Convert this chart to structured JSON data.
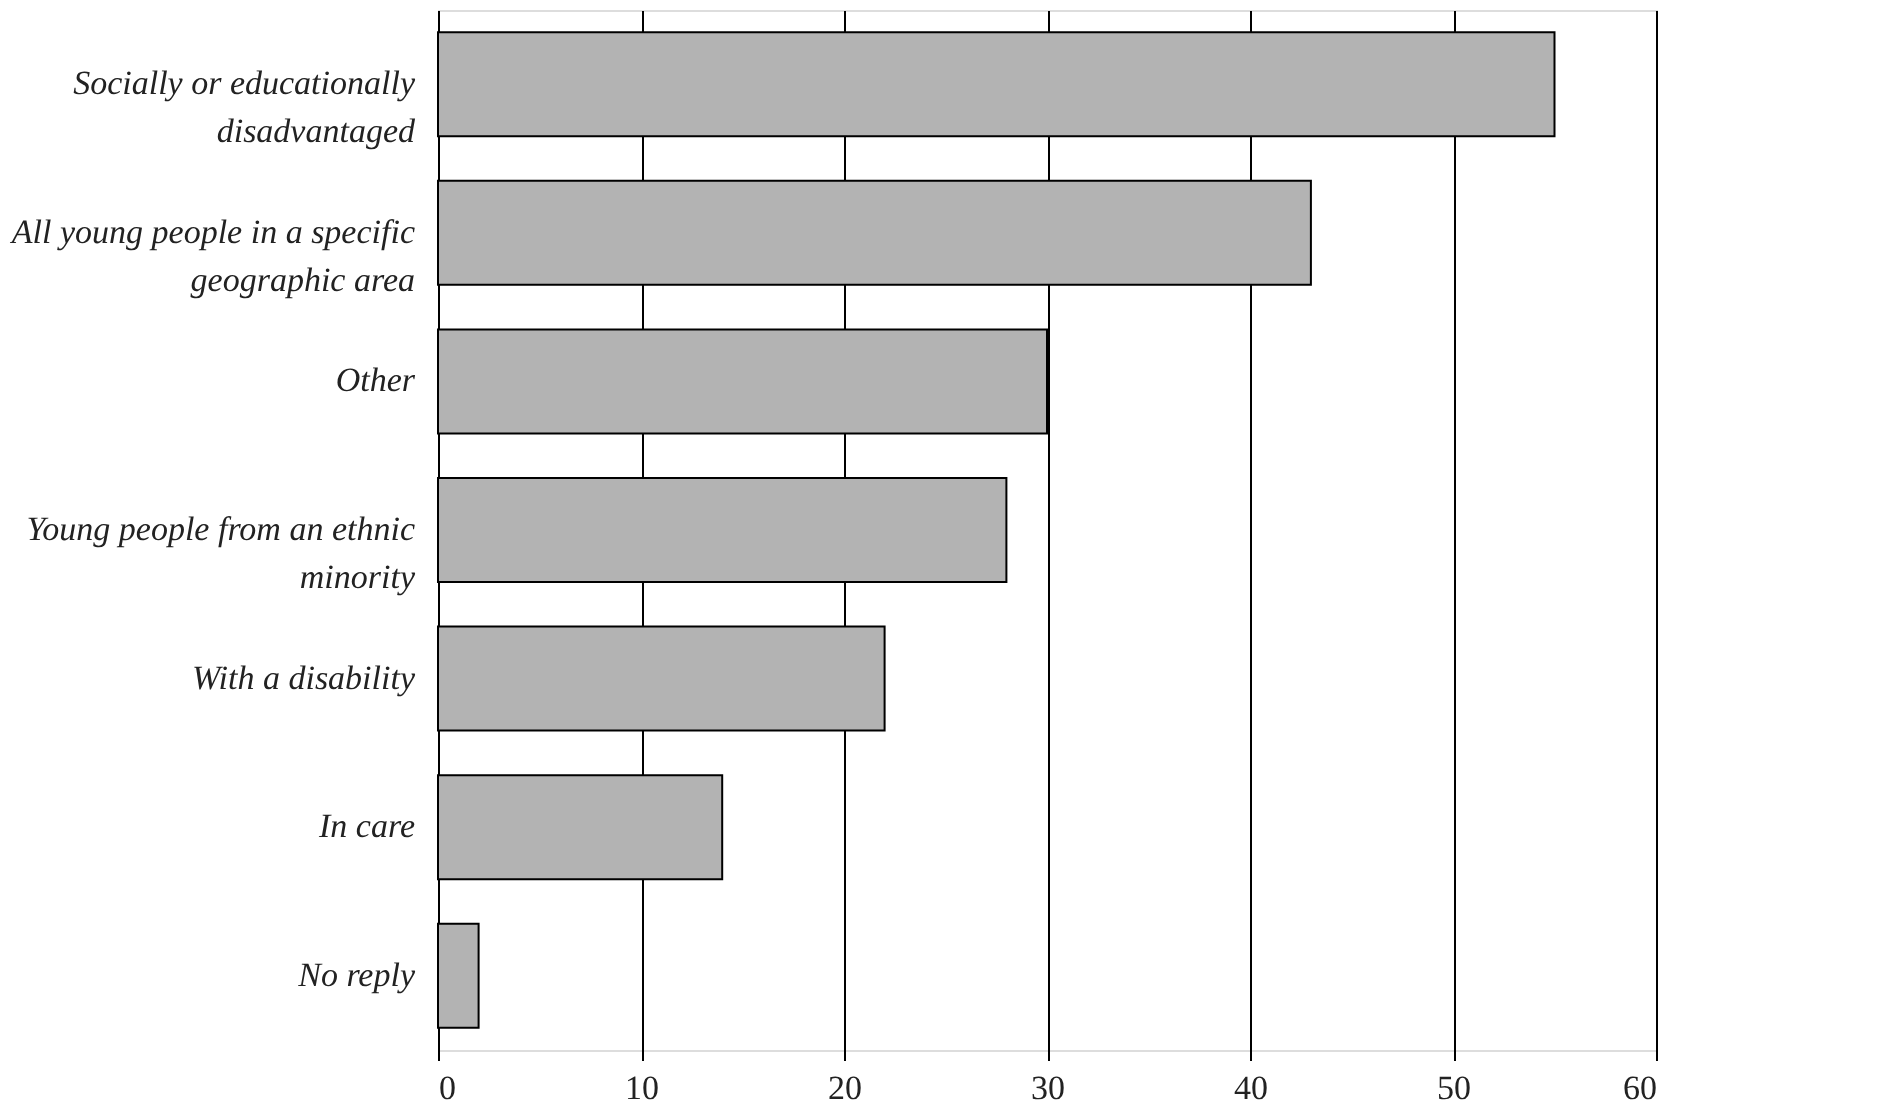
{
  "chart_data": {
    "type": "bar",
    "orientation": "horizontal",
    "categories": [
      "Socially or educationally disadvantaged",
      "All young people in a specific geographic area",
      "Other",
      "Young people from an ethnic minority",
      "With a disability",
      "In care",
      "No reply"
    ],
    "values": [
      55,
      43,
      30,
      28,
      22,
      14,
      2
    ],
    "color": "#b3b3b3",
    "xlim": [
      0,
      60
    ],
    "xticks": [
      0,
      10,
      20,
      30,
      40,
      50,
      60
    ],
    "grid": "x"
  }
}
